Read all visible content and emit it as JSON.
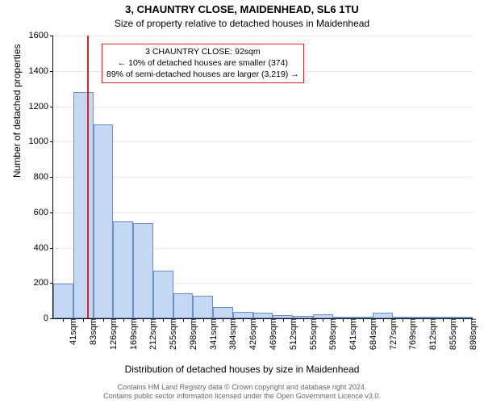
{
  "title": "3, CHAUNTRY CLOSE, MAIDENHEAD, SL6 1TU",
  "subtitle": "Size of property relative to detached houses in Maidenhead",
  "y_axis_label": "Number of detached properties",
  "x_axis_label": "Distribution of detached houses by size in Maidenhead",
  "attribution_line1": "Contains HM Land Registry data © Crown copyright and database right 2024.",
  "attribution_line2": "Contains public sector information licensed under the Open Government Licence v3.0.",
  "chart": {
    "type": "histogram",
    "ylim": [
      0,
      1600
    ],
    "ytick_step": 200,
    "xticks": [
      "41sqm",
      "83sqm",
      "126sqm",
      "169sqm",
      "212sqm",
      "255sqm",
      "298sqm",
      "341sqm",
      "384sqm",
      "426sqm",
      "469sqm",
      "512sqm",
      "555sqm",
      "598sqm",
      "641sqm",
      "684sqm",
      "727sqm",
      "769sqm",
      "812sqm",
      "855sqm",
      "898sqm"
    ],
    "bar_fill": "#c5d8f3",
    "bar_border": "#6b90c6",
    "background": "#ffffff",
    "grid_color": "#666666",
    "text_color": "#000000",
    "ref_line": {
      "x_index": 1.2,
      "color": "#d62728"
    },
    "callout": {
      "border_color": "#d62728",
      "lines": [
        "3 CHAUNTRY CLOSE: 92sqm",
        "← 10% of detached houses are smaller (374)",
        "89% of semi-detached houses are larger (3,219) →"
      ]
    },
    "values": [
      195,
      1280,
      1095,
      550,
      540,
      270,
      140,
      130,
      65,
      35,
      30,
      20,
      15,
      25,
      8,
      6,
      30,
      4,
      3,
      3,
      2
    ]
  }
}
